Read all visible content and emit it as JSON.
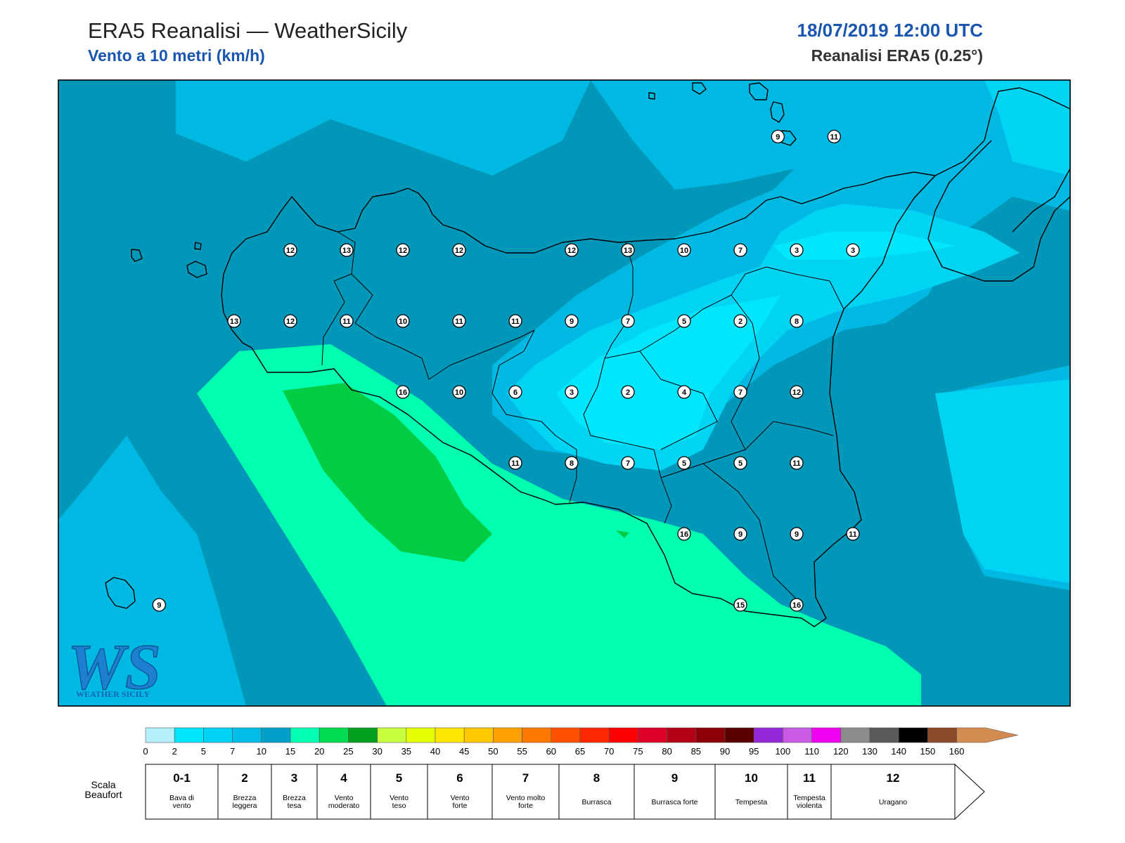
{
  "header": {
    "title": "ERA5 Reanalisi — WeatherSicily",
    "subtitle": "Vento a 10 metri (km/h)",
    "datetime": "18/07/2019 12:00 UTC",
    "model": "Reanalisi ERA5 (0.25°)"
  },
  "logo": {
    "letters": "WS",
    "text": "WEATHER SICILY"
  },
  "map": {
    "region": "Sicily",
    "variable": "10 m wind speed",
    "unit": "km/h",
    "wind_values": [
      {
        "name": "mark-1",
        "lon": 15.3,
        "lat": 38.6,
        "value": 9
      },
      {
        "name": "mark-2",
        "lon": 15.6,
        "lat": 38.6,
        "value": 11
      },
      {
        "name": "mark-3",
        "lon": 12.7,
        "lat": 38.2,
        "value": 12
      },
      {
        "name": "mark-4",
        "lon": 13.0,
        "lat": 38.2,
        "value": 13
      },
      {
        "name": "mark-5",
        "lon": 13.3,
        "lat": 38.2,
        "value": 12
      },
      {
        "name": "mark-6",
        "lon": 13.6,
        "lat": 38.2,
        "value": 12
      },
      {
        "name": "mark-7",
        "lon": 14.2,
        "lat": 38.2,
        "value": 12
      },
      {
        "name": "mark-8",
        "lon": 14.5,
        "lat": 38.2,
        "value": 13
      },
      {
        "name": "mark-9",
        "lon": 14.8,
        "lat": 38.2,
        "value": 10
      },
      {
        "name": "mark-10",
        "lon": 15.1,
        "lat": 38.2,
        "value": 7
      },
      {
        "name": "mark-11",
        "lon": 15.4,
        "lat": 38.2,
        "value": 3
      },
      {
        "name": "mark-12",
        "lon": 15.7,
        "lat": 38.2,
        "value": 3
      },
      {
        "name": "mark-13",
        "lon": 12.4,
        "lat": 37.95,
        "value": 13
      },
      {
        "name": "mark-14",
        "lon": 12.7,
        "lat": 37.95,
        "value": 12
      },
      {
        "name": "mark-15",
        "lon": 13.0,
        "lat": 37.95,
        "value": 11
      },
      {
        "name": "mark-16",
        "lon": 13.3,
        "lat": 37.95,
        "value": 10
      },
      {
        "name": "mark-17",
        "lon": 13.6,
        "lat": 37.95,
        "value": 11
      },
      {
        "name": "mark-18",
        "lon": 13.9,
        "lat": 37.95,
        "value": 11
      },
      {
        "name": "mark-19",
        "lon": 14.2,
        "lat": 37.95,
        "value": 9
      },
      {
        "name": "mark-20",
        "lon": 14.5,
        "lat": 37.95,
        "value": 7
      },
      {
        "name": "mark-21",
        "lon": 14.8,
        "lat": 37.95,
        "value": 5
      },
      {
        "name": "mark-22",
        "lon": 15.1,
        "lat": 37.95,
        "value": 2
      },
      {
        "name": "mark-23",
        "lon": 15.4,
        "lat": 37.95,
        "value": 8
      },
      {
        "name": "mark-24",
        "lon": 13.3,
        "lat": 37.7,
        "value": 16
      },
      {
        "name": "mark-25",
        "lon": 13.6,
        "lat": 37.7,
        "value": 10
      },
      {
        "name": "mark-26",
        "lon": 13.9,
        "lat": 37.7,
        "value": 6
      },
      {
        "name": "mark-27",
        "lon": 14.2,
        "lat": 37.7,
        "value": 3
      },
      {
        "name": "mark-28",
        "lon": 14.5,
        "lat": 37.7,
        "value": 2
      },
      {
        "name": "mark-29",
        "lon": 14.8,
        "lat": 37.7,
        "value": 4
      },
      {
        "name": "mark-30",
        "lon": 15.1,
        "lat": 37.7,
        "value": 7
      },
      {
        "name": "mark-31",
        "lon": 15.4,
        "lat": 37.7,
        "value": 12
      },
      {
        "name": "mark-32",
        "lon": 13.9,
        "lat": 37.45,
        "value": 11
      },
      {
        "name": "mark-33",
        "lon": 14.2,
        "lat": 37.45,
        "value": 8
      },
      {
        "name": "mark-34",
        "lon": 14.5,
        "lat": 37.45,
        "value": 7
      },
      {
        "name": "mark-35",
        "lon": 14.8,
        "lat": 37.45,
        "value": 5
      },
      {
        "name": "mark-36",
        "lon": 15.1,
        "lat": 37.45,
        "value": 5
      },
      {
        "name": "mark-37",
        "lon": 15.4,
        "lat": 37.45,
        "value": 11
      },
      {
        "name": "mark-38",
        "lon": 14.8,
        "lat": 37.2,
        "value": 16
      },
      {
        "name": "mark-39",
        "lon": 15.1,
        "lat": 37.2,
        "value": 9
      },
      {
        "name": "mark-40",
        "lon": 15.4,
        "lat": 37.2,
        "value": 9
      },
      {
        "name": "mark-41",
        "lon": 15.7,
        "lat": 37.2,
        "value": 11
      },
      {
        "name": "mark-42",
        "lon": 15.1,
        "lat": 36.95,
        "value": 15
      },
      {
        "name": "mark-43",
        "lon": 15.4,
        "lat": 36.95,
        "value": 16
      },
      {
        "name": "mark-44",
        "lon": 12.0,
        "lat": 36.95,
        "value": 9
      }
    ]
  },
  "colorbar": {
    "ticks": [
      "0",
      "2",
      "5",
      "7",
      "10",
      "15",
      "20",
      "25",
      "30",
      "35",
      "40",
      "45",
      "50",
      "55",
      "60",
      "65",
      "70",
      "75",
      "80",
      "85",
      "90",
      "95",
      "100",
      "110",
      "120",
      "130",
      "140",
      "150",
      "160"
    ],
    "colors": [
      "#b4f0fa",
      "#00e6ff",
      "#00d2f5",
      "#00bee6",
      "#00a0c8",
      "#00ffb4",
      "#00dc50",
      "#00a020",
      "#c8ff3c",
      "#e6ff00",
      "#ffe600",
      "#ffc800",
      "#ffa000",
      "#ff7800",
      "#ff5000",
      "#ff2800",
      "#ff0000",
      "#dc0028",
      "#b40014",
      "#8c000a",
      "#5a0000",
      "#9628dc",
      "#c85ae6",
      "#f000f0",
      "#8c8c8c",
      "#5a5a5a",
      "#000000",
      "#8c4b28",
      "#d28c50"
    ]
  },
  "beaufort": {
    "label": "Scala Beaufort",
    "classes": [
      {
        "num": "0-1",
        "desc": "Bava di vento"
      },
      {
        "num": "2",
        "desc": "Brezza leggera"
      },
      {
        "num": "3",
        "desc": "Brezza tesa"
      },
      {
        "num": "4",
        "desc": "Vento moderato"
      },
      {
        "num": "5",
        "desc": "Vento teso"
      },
      {
        "num": "6",
        "desc": "Vento forte"
      },
      {
        "num": "7",
        "desc": "Vento molto forte"
      },
      {
        "num": "8",
        "desc": "Burrasca"
      },
      {
        "num": "9",
        "desc": "Burrasca forte"
      },
      {
        "num": "10",
        "desc": "Tempesta"
      },
      {
        "num": "11",
        "desc": "Tempesta violenta"
      },
      {
        "num": "12",
        "desc": "Uragano"
      }
    ]
  }
}
